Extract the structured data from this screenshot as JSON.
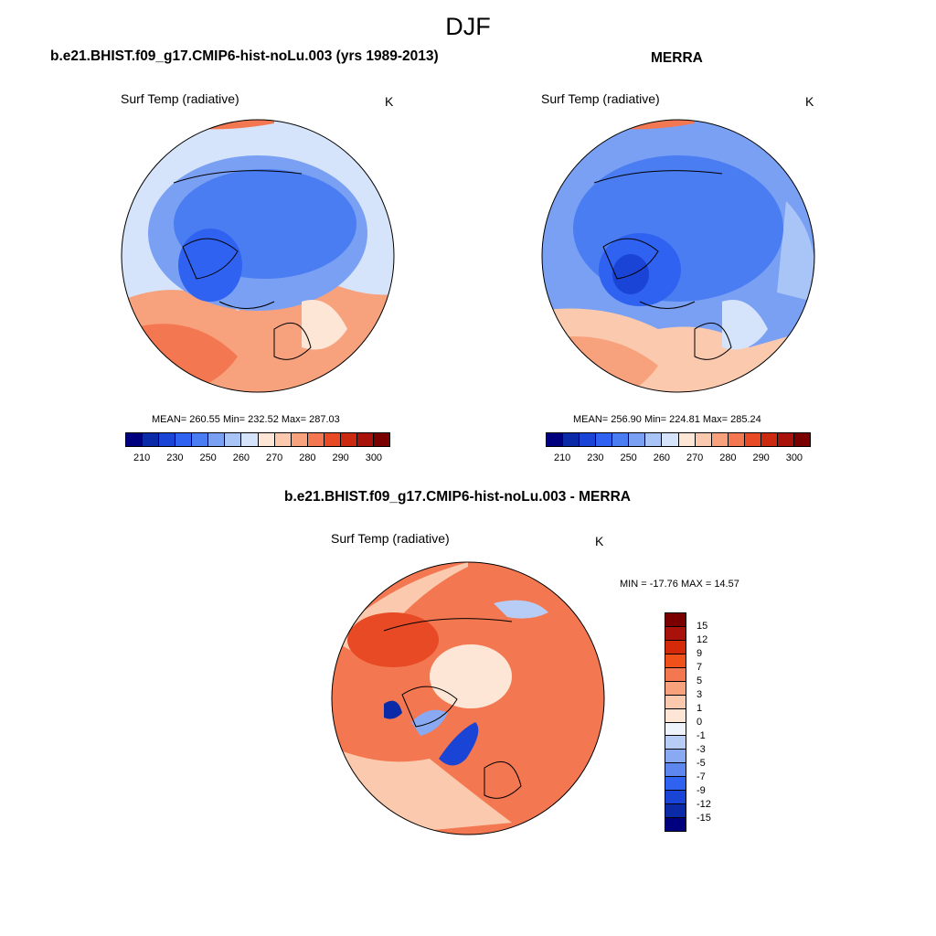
{
  "figure": {
    "season": "DJF"
  },
  "panels": {
    "model": {
      "title": "b.e21.BHIST.f09_g17.CMIP6-hist-noLu.003 (yrs 1989-2013)",
      "variable": "Surf Temp (radiative)",
      "units": "K",
      "stats": "MEAN= 260.55  Min= 232.52  Max= 287.03"
    },
    "obs": {
      "title": "MERRA",
      "variable": "Surf Temp (radiative)",
      "units": "K",
      "stats": "MEAN= 256.90  Min= 224.81  Max= 285.24"
    },
    "diff": {
      "title": "b.e21.BHIST.f09_g17.CMIP6-hist-noLu.003 - MERRA",
      "variable": "Surf Temp (radiative)",
      "units": "K",
      "stats": "MIN = -17.76 MAX =  14.57"
    }
  },
  "colorbars": {
    "abs_ticks": [
      "210",
      "230",
      "250",
      "260",
      "270",
      "280",
      "290",
      "300"
    ],
    "abs_colors": [
      "#00007f",
      "#0a2aa8",
      "#1a44d6",
      "#2f62f0",
      "#4a7cf2",
      "#7aa0f4",
      "#a9c4f7",
      "#d6e4fb",
      "#fde6d6",
      "#fbc9ad",
      "#f7a27d",
      "#f37751",
      "#e84a25",
      "#cc2a10",
      "#a8120a",
      "#7a0000"
    ],
    "diff_ticks": [
      "15",
      "12",
      "9",
      "7",
      "5",
      "3",
      "1",
      "0",
      "-1",
      "-3",
      "-5",
      "-7",
      "-9",
      "-12",
      "-15"
    ],
    "diff_colors": [
      "#7a0000",
      "#a8120a",
      "#d42a0a",
      "#f0501a",
      "#f37751",
      "#f7a27d",
      "#fbc9ad",
      "#fde6d6",
      "#eef3fc",
      "#b8cdf6",
      "#89a9f2",
      "#5d86ef",
      "#2f62f0",
      "#1a44d6",
      "#0a2aa8",
      "#00007f"
    ]
  },
  "map_colors": {
    "coast": "#000000"
  }
}
